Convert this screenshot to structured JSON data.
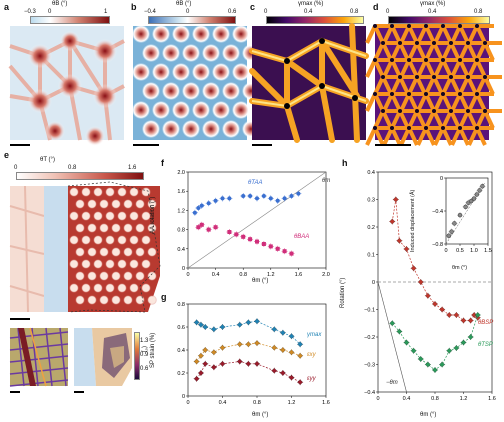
{
  "panels": {
    "a": {
      "label": "a",
      "cbar_title": "θB (°)",
      "ticks": [
        "−0.3",
        "0",
        "1"
      ]
    },
    "b": {
      "label": "b",
      "cbar_title": "θB (°)",
      "ticks": [
        "−0.4",
        "0",
        "0.6"
      ]
    },
    "c": {
      "label": "c",
      "cbar_title": "γmax (%)",
      "ticks": [
        "0",
        "0.4",
        "0.8"
      ]
    },
    "d": {
      "label": "d",
      "cbar_title": "γmax (%)",
      "ticks": [
        "0",
        "0.4",
        "0.8"
      ]
    },
    "e": {
      "label": "e",
      "cbar_title": "θT (°)",
      "ticks": [
        "0",
        "0.8",
        "1.6"
      ],
      "inset_cbar_title": "(°)",
      "inset_ticks": [
        "1.3",
        "0.9",
        "0.6"
      ]
    },
    "f": {
      "label": "f",
      "ylabel": "AA rotation (°)",
      "xlabel": "θm (°)",
      "series_top": "θTAA",
      "series_bottom": "θBAA",
      "line_label": "θm"
    },
    "g": {
      "label": "g",
      "ylabel": "SP strain (%)",
      "xlabel": "θm (°)",
      "series": [
        "γmax",
        "εxy",
        "εyy"
      ]
    },
    "h": {
      "label": "h",
      "ylabel": "Rotation (°)",
      "xlabel": "θm (°)",
      "series": [
        "θBSP",
        "θTSP"
      ],
      "line_label": "−θm",
      "inset_ylabel": "Induced displacement (Å)",
      "inset_xlabel": "θm (°)"
    }
  },
  "chart_data": [
    {
      "type": "scatter",
      "title": "f",
      "xlabel": "θm (°)",
      "ylabel": "AA rotation (°)",
      "xlim": [
        0,
        2
      ],
      "ylim": [
        0,
        2
      ],
      "xticks": [
        "0",
        "0.4",
        "0.8",
        "1.2",
        "1.6",
        "2.0"
      ],
      "yticks": [
        "0",
        "0.4",
        "0.8",
        "1.2",
        "1.6",
        "2.0"
      ],
      "series": [
        {
          "name": "θTAA",
          "x": [
            0.1,
            0.15,
            0.2,
            0.3,
            0.4,
            0.5,
            0.6,
            0.8,
            0.9,
            1.0,
            1.1,
            1.2,
            1.3,
            1.4,
            1.5,
            1.6
          ],
          "y": [
            1.15,
            1.25,
            1.3,
            1.35,
            1.4,
            1.45,
            1.45,
            1.5,
            1.5,
            1.45,
            1.5,
            1.45,
            1.4,
            1.45,
            1.5,
            1.55
          ]
        },
        {
          "name": "θBAA",
          "x": [
            0.15,
            0.2,
            0.3,
            0.4,
            0.6,
            0.7,
            0.8,
            0.9,
            1.0,
            1.1,
            1.2,
            1.3,
            1.4,
            1.5
          ],
          "y": [
            0.85,
            0.9,
            0.8,
            0.85,
            0.75,
            0.7,
            0.65,
            0.6,
            0.55,
            0.5,
            0.45,
            0.4,
            0.35,
            0.3
          ]
        }
      ]
    },
    {
      "type": "scatter",
      "title": "g",
      "xlabel": "θm (°)",
      "ylabel": "SP strain (%)",
      "xlim": [
        0,
        1.6
      ],
      "ylim": [
        0,
        0.8
      ],
      "xticks": [
        "0",
        "0.4",
        "0.8",
        "1.2",
        "1.6"
      ],
      "yticks": [
        "0",
        "0.2",
        "0.4",
        "0.6",
        "0.8"
      ],
      "series": [
        {
          "name": "γmax",
          "x": [
            0.1,
            0.15,
            0.2,
            0.3,
            0.4,
            0.6,
            0.7,
            0.8,
            1.0,
            1.1,
            1.2,
            1.3
          ],
          "y": [
            0.64,
            0.62,
            0.6,
            0.58,
            0.6,
            0.62,
            0.64,
            0.65,
            0.58,
            0.55,
            0.52,
            0.45
          ]
        },
        {
          "name": "εxy",
          "x": [
            0.1,
            0.15,
            0.2,
            0.3,
            0.4,
            0.6,
            0.7,
            0.8,
            1.0,
            1.1,
            1.2,
            1.3
          ],
          "y": [
            0.3,
            0.35,
            0.4,
            0.38,
            0.42,
            0.45,
            0.45,
            0.46,
            0.42,
            0.4,
            0.38,
            0.35
          ]
        },
        {
          "name": "εyy",
          "x": [
            0.1,
            0.15,
            0.2,
            0.3,
            0.4,
            0.6,
            0.7,
            0.8,
            1.0,
            1.1,
            1.2,
            1.3
          ],
          "y": [
            0.15,
            0.2,
            0.28,
            0.25,
            0.28,
            0.3,
            0.28,
            0.28,
            0.22,
            0.2,
            0.16,
            0.12
          ]
        }
      ]
    },
    {
      "type": "scatter",
      "title": "h",
      "xlabel": "θm (°)",
      "ylabel": "Rotation (°)",
      "xlim": [
        0,
        1.6
      ],
      "ylim": [
        -0.4,
        0.4
      ],
      "xticks": [
        "0",
        "0.4",
        "0.8",
        "1.2",
        "1.6"
      ],
      "yticks": [
        "−0.4",
        "−0.3",
        "−0.2",
        "−0.1",
        "0",
        "0.1",
        "0.2",
        "0.3",
        "0.4"
      ],
      "series": [
        {
          "name": "θBSP",
          "x": [
            0.2,
            0.25,
            0.3,
            0.4,
            0.5,
            0.6,
            0.7,
            0.8,
            0.9,
            1.0,
            1.1,
            1.2,
            1.3,
            1.35,
            1.4
          ],
          "y": [
            0.22,
            0.3,
            0.15,
            0.12,
            0.05,
            0.0,
            -0.05,
            -0.08,
            -0.1,
            -0.12,
            -0.12,
            -0.14,
            -0.14,
            -0.12,
            -0.13
          ]
        },
        {
          "name": "θTSP",
          "x": [
            0.2,
            0.3,
            0.4,
            0.5,
            0.6,
            0.7,
            0.8,
            0.9,
            1.0,
            1.1,
            1.2,
            1.3,
            1.4
          ],
          "y": [
            -0.15,
            -0.18,
            -0.22,
            -0.25,
            -0.28,
            -0.3,
            -0.32,
            -0.3,
            -0.25,
            -0.24,
            -0.22,
            -0.2,
            -0.12
          ]
        }
      ]
    },
    {
      "type": "scatter",
      "title": "h inset",
      "xlabel": "θm (°)",
      "ylabel": "Induced displacement (Å)",
      "xlim": [
        0,
        1.5
      ],
      "ylim": [
        -0.8,
        0
      ],
      "xticks": [
        "0",
        "0.5",
        "1.0",
        "1.5"
      ],
      "yticks": [
        "−0.8",
        "−0.4",
        "0"
      ],
      "series": [
        {
          "name": "displacement",
          "x": [
            0.1,
            0.2,
            0.3,
            0.5,
            0.7,
            0.8,
            0.9,
            1.0,
            1.1,
            1.2,
            1.3
          ],
          "y": [
            -0.7,
            -0.65,
            -0.55,
            -0.45,
            -0.35,
            -0.3,
            -0.28,
            -0.25,
            -0.2,
            -0.15,
            -0.1
          ]
        }
      ]
    }
  ]
}
